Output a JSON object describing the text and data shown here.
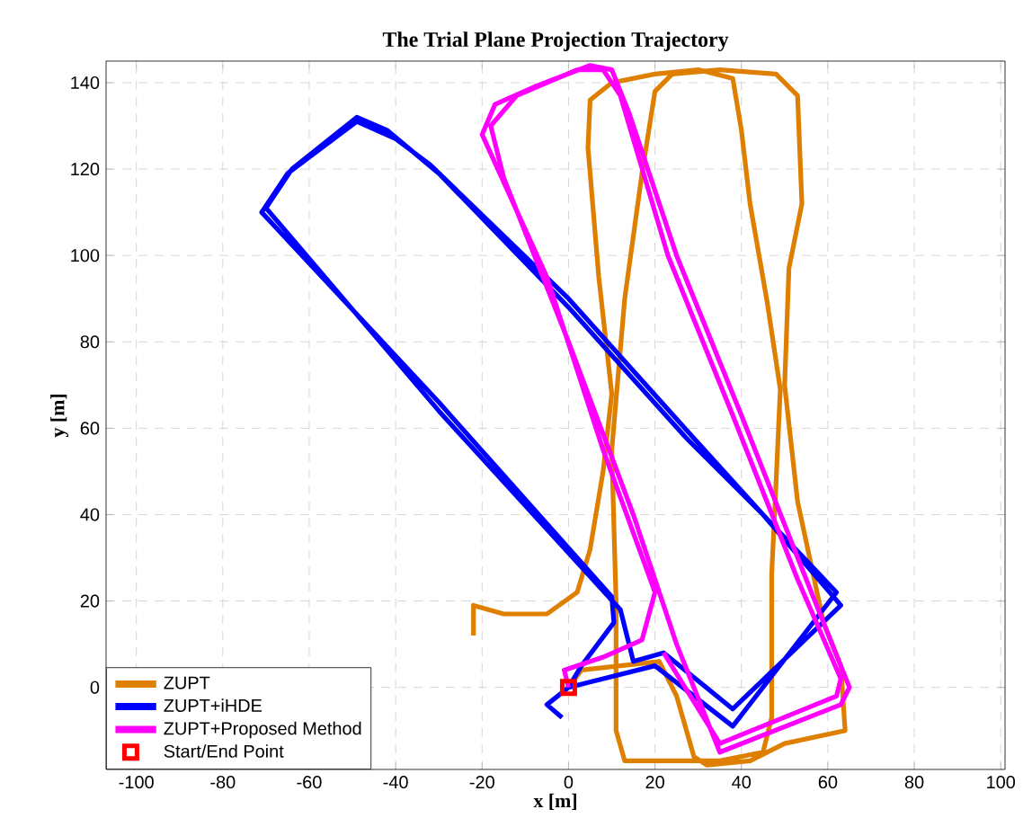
{
  "chart_data": {
    "type": "line",
    "title": "The Trial Plane Projection Trajectory",
    "xlabel": "x [m]",
    "ylabel": "y [m]",
    "xlim": [
      -107,
      101
    ],
    "ylim": [
      -19,
      145
    ],
    "xticks": [
      -100,
      -80,
      -60,
      -40,
      -20,
      0,
      20,
      40,
      60,
      80,
      100
    ],
    "yticks": [
      0,
      20,
      40,
      60,
      80,
      100,
      120,
      140
    ],
    "grid": true,
    "legend": "bottom left",
    "series": [
      {
        "name": "ZUPT",
        "color": "#df7f00",
        "x": [
          -22,
          -22,
          -15,
          -5,
          2,
          5,
          8,
          10,
          7,
          4.5,
          5,
          10,
          20,
          30,
          38,
          40,
          42,
          46,
          49,
          48,
          47,
          47,
          45,
          35,
          13,
          11,
          11,
          10,
          13,
          17,
          20,
          24,
          35,
          48,
          53,
          54,
          51,
          50,
          53,
          59,
          63,
          64,
          50,
          42,
          32,
          29,
          25,
          21,
          3,
          0
        ],
        "values": [
          12,
          19,
          17,
          17,
          22,
          32,
          50,
          68,
          95,
          125,
          136,
          140,
          142,
          143,
          141,
          129,
          112,
          89,
          69,
          47,
          26,
          -7,
          -15,
          -17,
          -17,
          -10,
          20,
          55,
          90,
          119,
          138,
          142,
          143,
          142,
          137,
          112,
          97,
          70,
          43,
          15,
          5,
          -10,
          -13,
          -17,
          -18,
          -16,
          -2,
          6,
          4,
          0
        ]
      },
      {
        "name": "ZUPT+iHDE",
        "color": "#0000ff",
        "x": [
          0,
          3,
          10.5,
          10,
          -30,
          -71,
          -65,
          -49,
          -40,
          -32,
          0,
          26,
          45,
          63,
          38,
          22,
          15,
          12,
          -30,
          -70,
          -64,
          -49,
          -42,
          -30,
          0,
          27,
          45,
          62,
          38,
          20,
          0,
          -5,
          -1.5
        ],
        "values": [
          0,
          5,
          15,
          21,
          66,
          110,
          119,
          131,
          127,
          121,
          90,
          61,
          40,
          19,
          -5,
          8,
          6,
          18,
          64,
          111,
          120,
          132,
          129,
          119,
          88,
          58,
          40,
          22,
          -9,
          5,
          0,
          -4,
          -7
        ]
      },
      {
        "name": "ZUPT+Proposed Method",
        "color": "#ff00ff",
        "x": [
          0,
          -1,
          8,
          17,
          20,
          8,
          -5,
          -20,
          -17,
          -8,
          5,
          10,
          14,
          25,
          40,
          55,
          65,
          63,
          35,
          25,
          15,
          0,
          -15,
          -18,
          -12,
          2,
          8,
          12,
          23,
          38,
          53,
          63,
          62,
          35,
          22
        ],
        "values": [
          0,
          4,
          7,
          11,
          22,
          55,
          95,
          128,
          135,
          139,
          144,
          143,
          133,
          100,
          63,
          25,
          0,
          -4,
          -15,
          10,
          40,
          80,
          118,
          130,
          137,
          143,
          143,
          137,
          100,
          63,
          25,
          2,
          -2,
          -13,
          8
        ]
      },
      {
        "name": "Start/End Point",
        "type": "scatter",
        "marker": "square",
        "color": "#ff0000",
        "x": [
          0
        ],
        "values": [
          0
        ]
      }
    ]
  }
}
